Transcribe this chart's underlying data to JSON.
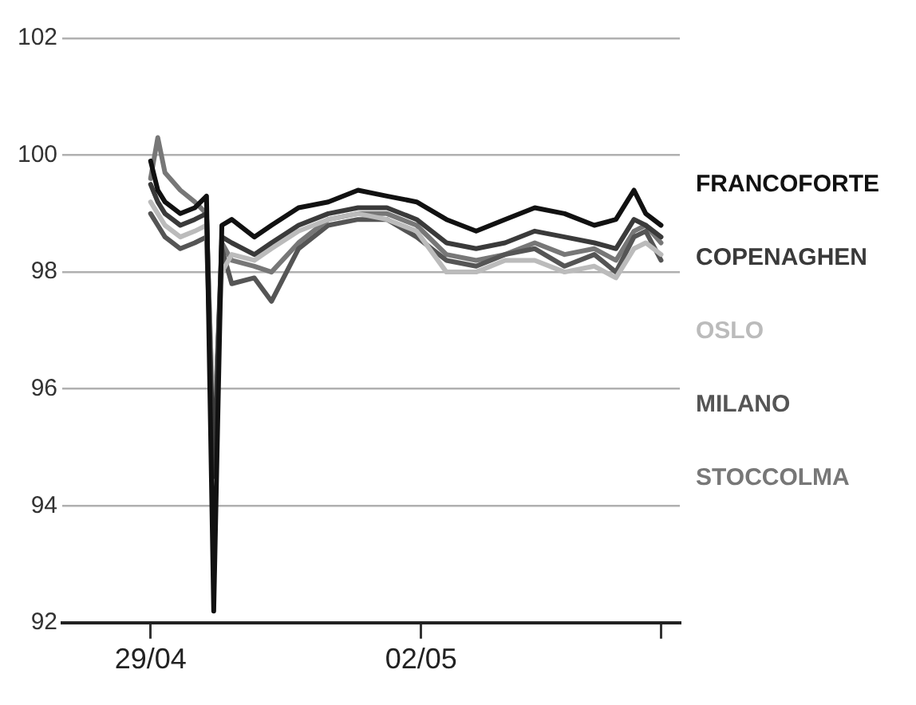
{
  "chart_data": {
    "type": "line",
    "x": [
      "--04-29T00:00",
      "--04-29T01:55",
      "--04-29T03:50",
      "--04-29T07:55",
      "--04-29T11:45",
      "--04-29T14:53",
      "--04-29T16:48",
      "--04-29T18:58",
      "--04-29T21:36",
      "--04-30T03:36",
      "--04-30T08:10",
      "--04-30T15:22",
      "--04-30T23:17",
      "--05-01T07:12",
      "--05-01T14:53",
      "--05-01T22:48",
      "--05-02T06:43",
      "--05-02T14:38",
      "--05-02T22:19",
      "--05-03T06:14",
      "--05-03T14:10",
      "--05-03T22:05",
      "--05-04T03:50",
      "--05-04T08:38",
      "--05-04T11:46",
      "--05-04T15:50"
    ],
    "series": [
      {
        "name": "FRANCOFORTE",
        "color": "#111111",
        "values": [
          99.9,
          99.4,
          99.2,
          99.0,
          99.1,
          99.3,
          92.2,
          98.8,
          98.9,
          98.6,
          98.8,
          99.1,
          99.2,
          99.4,
          99.3,
          99.2,
          98.9,
          98.7,
          98.9,
          99.1,
          99.0,
          98.8,
          98.9,
          99.4,
          99.0,
          98.8
        ]
      },
      {
        "name": "COPENAGHEN",
        "color": "#3a3a3a",
        "values": [
          99.5,
          99.2,
          99.0,
          98.8,
          98.9,
          99.0,
          94.5,
          98.6,
          98.5,
          98.3,
          98.5,
          98.8,
          99.0,
          99.1,
          99.1,
          98.9,
          98.5,
          98.4,
          98.5,
          98.7,
          98.6,
          98.5,
          98.4,
          98.9,
          98.8,
          98.6
        ]
      },
      {
        "name": "OSLO",
        "color": "#bbbbbb",
        "values": [
          99.2,
          99.0,
          98.8,
          98.6,
          98.7,
          98.8,
          95.2,
          98.0,
          98.3,
          98.2,
          98.4,
          98.7,
          98.9,
          99.0,
          98.9,
          98.7,
          98.0,
          98.0,
          98.2,
          98.2,
          98.0,
          98.1,
          97.9,
          98.4,
          98.5,
          98.3
        ]
      },
      {
        "name": "MILANO",
        "color": "#555555",
        "values": [
          99.0,
          98.8,
          98.6,
          98.4,
          98.5,
          98.6,
          94.8,
          98.4,
          97.8,
          97.9,
          97.5,
          98.4,
          98.8,
          98.9,
          98.9,
          98.6,
          98.2,
          98.1,
          98.3,
          98.4,
          98.1,
          98.3,
          98.0,
          98.6,
          98.7,
          98.2
        ]
      },
      {
        "name": "STOCCOLMA",
        "color": "#777777",
        "values": [
          99.6,
          100.3,
          99.7,
          99.4,
          99.2,
          99.0,
          95.0,
          98.5,
          98.2,
          98.1,
          98.0,
          98.5,
          98.9,
          99.0,
          99.0,
          98.8,
          98.3,
          98.2,
          98.3,
          98.5,
          98.3,
          98.4,
          98.2,
          98.7,
          98.8,
          98.5
        ]
      }
    ],
    "xlim": [
      "--04-28T00:30",
      "--05-04T20:50"
    ],
    "xticks": [
      {
        "value": "--04-29",
        "label": "29/04"
      },
      {
        "value": "--05-02",
        "label": "02/05"
      },
      {
        "value": "--05-04T15:50",
        "label": null
      }
    ],
    "ylim": [
      92,
      102
    ],
    "yticks": [
      92,
      94,
      96,
      98,
      100,
      102
    ],
    "grid": "y",
    "legend": "right",
    "marker": "none",
    "line_style": "solid"
  }
}
